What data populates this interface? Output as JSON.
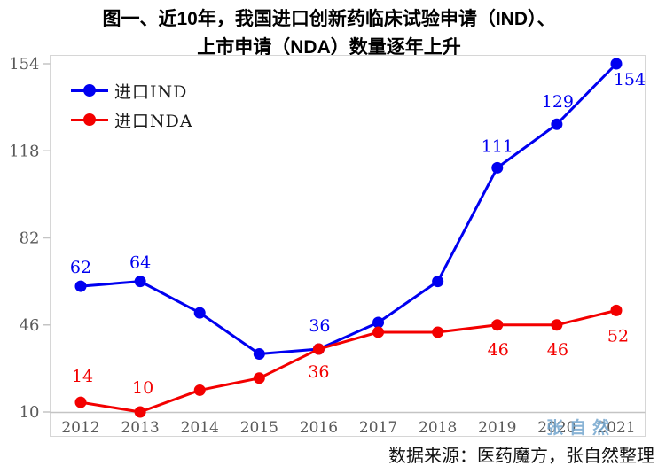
{
  "title": {
    "line1": "图一、近10年，我国进口创新药临床试验申请（IND）、",
    "line2": "上市申请（NDA）数量逐年上升"
  },
  "colors": {
    "ind_blue": "#0000f0",
    "nda_red": "#f30000",
    "frame_gray": "#d6d6d6",
    "axis_gray": "#c4c4c4",
    "tick_text_gray": "#595959",
    "watermark_blue": "#78a9d0"
  },
  "chart_data": {
    "type": "line",
    "categories": [
      "2012",
      "2013",
      "2014",
      "2015",
      "2016",
      "2017",
      "2018",
      "2019",
      "2020",
      "2021"
    ],
    "y_ticks": [
      10,
      46,
      82,
      118,
      154
    ],
    "ylim": [
      10,
      154
    ],
    "grid": "off",
    "legend_position": "inside-top-left",
    "series": [
      {
        "name": "进口IND",
        "color": "#0000f0",
        "values": [
          62,
          64,
          51,
          34,
          36,
          47,
          64,
          111,
          129,
          154
        ],
        "labels": [
          {
            "i": 0,
            "text": "62",
            "dx": 0,
            "dy": -21
          },
          {
            "i": 1,
            "text": "64",
            "dx": 0,
            "dy": -21
          },
          {
            "i": 4,
            "text": "36",
            "dx": 1,
            "dy": -26
          },
          {
            "i": 7,
            "text": "111",
            "dx": 0,
            "dy": -24
          },
          {
            "i": 8,
            "text": "129",
            "dx": 1,
            "dy": -25
          },
          {
            "i": 9,
            "text": "154",
            "dx": 15,
            "dy": 18
          }
        ]
      },
      {
        "name": "进口NDA",
        "color": "#f30000",
        "values": [
          14,
          10,
          19,
          24,
          36,
          43,
          43,
          46,
          46,
          52
        ],
        "labels": [
          {
            "i": 0,
            "text": "14",
            "dx": 2,
            "dy": -29
          },
          {
            "i": 1,
            "text": "10",
            "dx": 3,
            "dy": -27
          },
          {
            "i": 4,
            "text": "36",
            "dx": 0,
            "dy": 26
          },
          {
            "i": 7,
            "text": "46",
            "dx": 1,
            "dy": 28
          },
          {
            "i": 8,
            "text": "46",
            "dx": 1,
            "dy": 28
          },
          {
            "i": 9,
            "text": "52",
            "dx": 2,
            "dy": 29
          }
        ]
      }
    ]
  },
  "legend": [
    {
      "label": "进口IND",
      "color": "#0000f0"
    },
    {
      "label": "进口NDA",
      "color": "#f30000"
    }
  ],
  "watermark": "张自然",
  "footer": "数据来源：医药魔方，张自然整理"
}
